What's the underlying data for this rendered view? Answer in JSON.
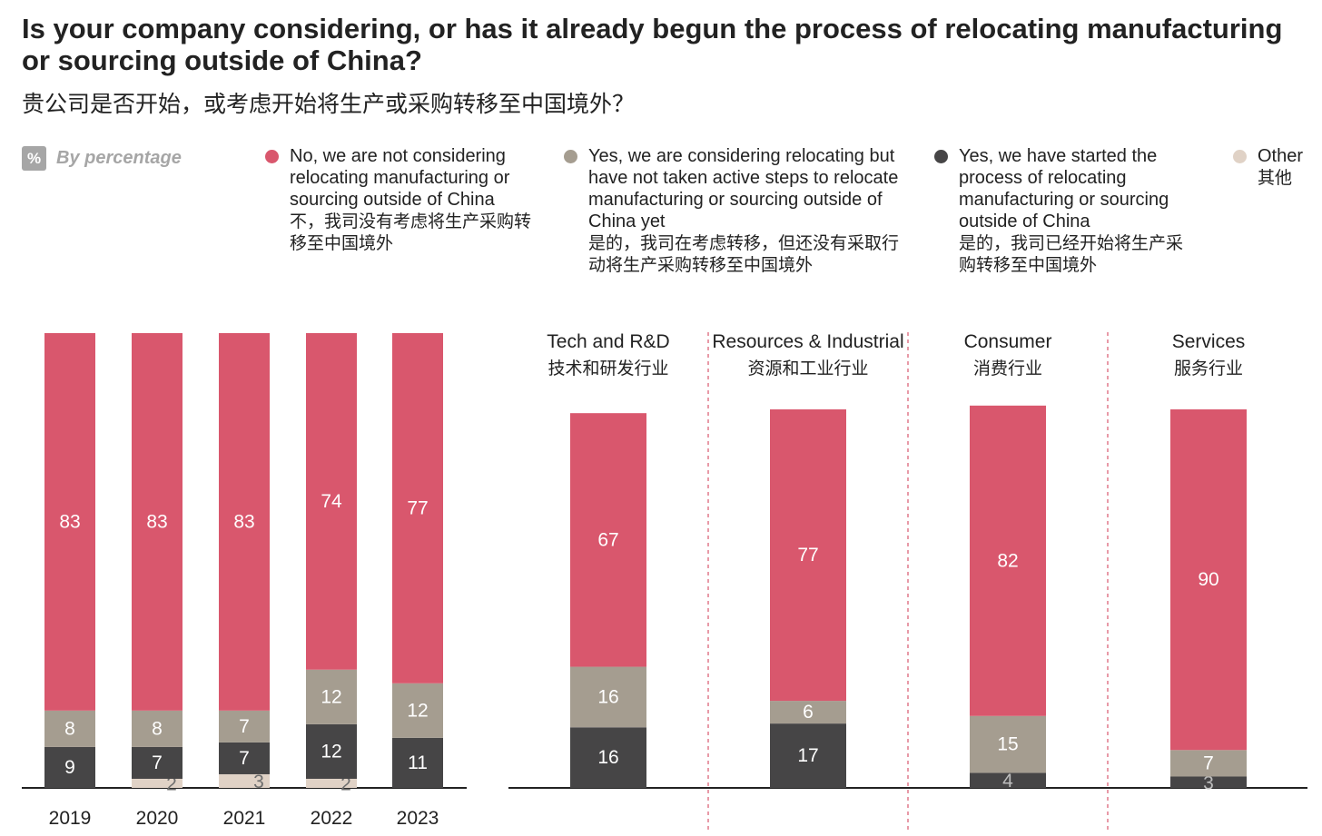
{
  "header": {
    "title": "Is your company considering, or has it already begun the process of relocating manufacturing or sourcing outside of China?",
    "subtitle": "贵公司是否开始，或考虑开始将生产或采购转移至中国境外？",
    "unit_symbol": "%",
    "unit_label": "By percentage"
  },
  "legend": [
    {
      "en": "No, we are not considering relocating manufacturing or sourcing outside of China",
      "zh": "不，我司没有考虑将生产采购转移至中国境外",
      "color": "#d9576d"
    },
    {
      "en": "Yes, we are considering relocating but have not taken active steps to relocate manufacturing or sourcing outside of China yet",
      "zh": "是的，我司在考虑转移，但还没有采取行动将生产采购转移至中国境外",
      "color": "#a59d90"
    },
    {
      "en": "Yes, we have started the process of relocating manufacturing or sourcing outside of China",
      "zh": "是的，我司已经开始将生产采购转移至中国境外",
      "color": "#464546"
    },
    {
      "en": "Other",
      "zh": "其他",
      "color": "#e0d2c6"
    }
  ],
  "chart_data": [
    {
      "type": "bar",
      "stacked": true,
      "categories": [
        "2019",
        "2020",
        "2021",
        "2022",
        "2023"
      ],
      "series": [
        {
          "name": "No, we are not considering relocating manufacturing or sourcing outside of China",
          "color": "#d9576d",
          "values": [
            83,
            83,
            83,
            74,
            77
          ]
        },
        {
          "name": "Yes, we are considering relocating but have not taken active steps to relocate manufacturing or sourcing outside of China yet",
          "color": "#a59d90",
          "values": [
            8,
            8,
            7,
            12,
            12
          ]
        },
        {
          "name": "Yes, we have started the process of relocating manufacturing or sourcing outside of China",
          "color": "#464546",
          "values": [
            9,
            7,
            7,
            12,
            11
          ]
        },
        {
          "name": "Other",
          "color": "#e0d2c6",
          "values": [
            0,
            2,
            3,
            2,
            0
          ]
        }
      ],
      "ylim": [
        0,
        100
      ]
    },
    {
      "type": "bar",
      "stacked": true,
      "categories": [
        "Tech and R&D",
        "Resources & Industrial",
        "Consumer",
        "Services"
      ],
      "categories_zh": [
        "技术和研发行业",
        "资源和工业行业",
        "消费行业",
        "服务行业"
      ],
      "series": [
        {
          "name": "No, we are not considering relocating manufacturing or sourcing outside of China",
          "color": "#d9576d",
          "values": [
            67,
            77,
            82,
            90
          ]
        },
        {
          "name": "Yes, we are considering relocating but have not taken active steps to relocate manufacturing or sourcing outside of China yet",
          "color": "#a59d90",
          "values": [
            16,
            6,
            15,
            7
          ]
        },
        {
          "name": "Yes, we have started the process of relocating manufacturing or sourcing outside of China",
          "color": "#464546",
          "values": [
            16,
            17,
            4,
            3
          ]
        }
      ],
      "ylim": [
        0,
        100
      ]
    }
  ]
}
